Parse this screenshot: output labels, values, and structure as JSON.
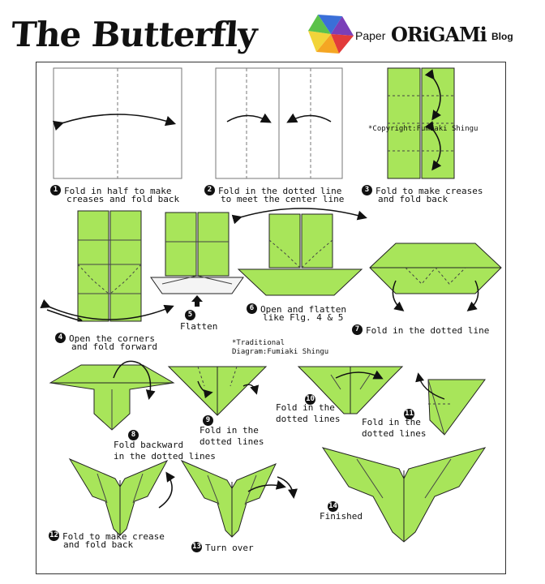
{
  "title": "The Butterfly",
  "logo": {
    "paper": "Paper",
    "origami": "ORiGAMi",
    "blog": "Blog"
  },
  "colors": {
    "paper_green": "#a8e55a",
    "paper_dark": "#7fbf38",
    "outline": "#222222"
  },
  "credits": {
    "copyright": "*Copyright:Fumiaki Shingu",
    "traditional": "*Traditional",
    "diagram": "Diagram:Fumiaki Shingu"
  },
  "steps": [
    {
      "n": "1",
      "line1": "Fold in half to make",
      "line2": "creases and fold back"
    },
    {
      "n": "2",
      "line1": "Fold in the dotted line",
      "line2": "to meet the center line"
    },
    {
      "n": "3",
      "line1": "Fold to make creases",
      "line2": "and fold back"
    },
    {
      "n": "4",
      "line1": "Open the corners",
      "line2": "and fold forward"
    },
    {
      "n": "5",
      "line1": "Flatten",
      "line2": ""
    },
    {
      "n": "6",
      "line1": "Open and flatten",
      "line2": "like Flg. 4 & 5"
    },
    {
      "n": "7",
      "line1": "Fold in the dotted line",
      "line2": ""
    },
    {
      "n": "8",
      "line1": "Fold backward",
      "line2": "in the dotted lines"
    },
    {
      "n": "9",
      "line1": "Fold in the",
      "line2": "dotted lines"
    },
    {
      "n": "10",
      "line1": "Fold in the",
      "line2": "dotted lines"
    },
    {
      "n": "11",
      "line1": "Fold in the",
      "line2": "dotted lines"
    },
    {
      "n": "12",
      "line1": "Fold to make crease",
      "line2": "and fold back"
    },
    {
      "n": "13",
      "line1": "Turn over",
      "line2": ""
    },
    {
      "n": "14",
      "line1": "Finished",
      "line2": ""
    }
  ]
}
